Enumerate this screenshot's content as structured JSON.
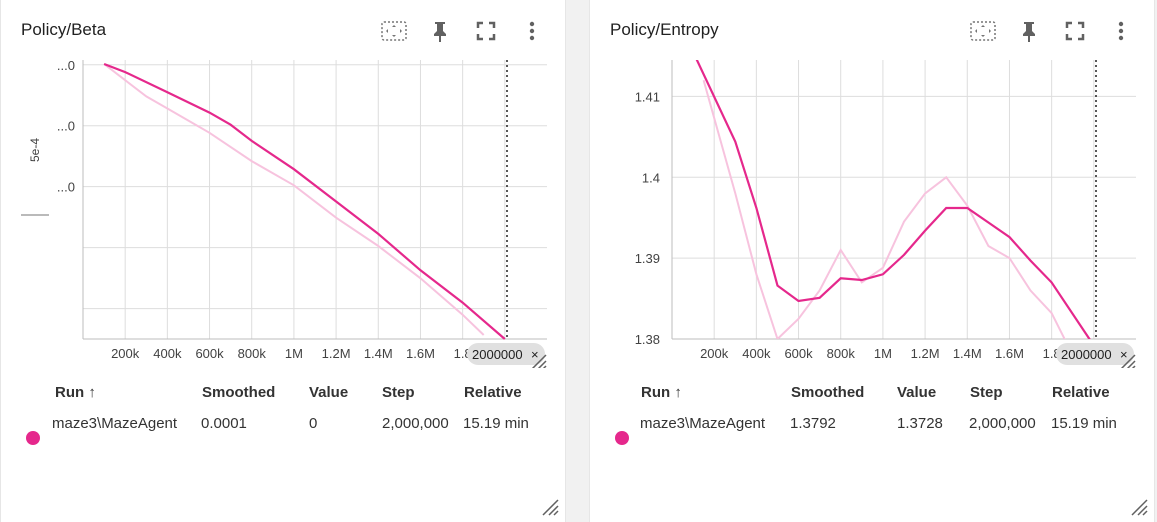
{
  "colors": {
    "smoothed": "#e5288c",
    "raw": "#f7c3de",
    "grid": "#dddddd",
    "axis": "#bdbdbd"
  },
  "toolbar_icons": [
    "fit-domain-icon",
    "pin-icon",
    "fullscreen-icon",
    "more-vert-icon"
  ],
  "table_headers": {
    "run": "Run ↑",
    "smoothed": "Smoothed",
    "value": "Value",
    "step": "Step",
    "relative": "Relative"
  },
  "cards": [
    {
      "title": "Policy/Beta",
      "y_scale_label": "5e-4",
      "x_ticks": [
        "200k",
        "400k",
        "600k",
        "800k",
        "1M",
        "1.2M",
        "1.4M",
        "1.6M",
        "1.8"
      ],
      "y_ticks": [
        "...0",
        "...0",
        "...0"
      ],
      "step_tag": "2000000",
      "step_tag_close": "×",
      "row": {
        "run": "maze3\\MazeAgent",
        "smoothed": "0.0001",
        "value": "0",
        "step": "2,000,000",
        "relative": "15.19 min"
      }
    },
    {
      "title": "Policy/Entropy",
      "x_ticks": [
        "200k",
        "400k",
        "600k",
        "800k",
        "1M",
        "1.2M",
        "1.4M",
        "1.6M",
        "1.8"
      ],
      "y_ticks": [
        "1.41",
        "1.4",
        "1.39",
        "1.38"
      ],
      "step_tag": "2000000",
      "step_tag_close": "×",
      "row": {
        "run": "maze3\\MazeAgent",
        "smoothed": "1.3792",
        "value": "1.3728",
        "step": "2,000,000",
        "relative": "15.19 min"
      }
    }
  ],
  "chart_data": [
    {
      "type": "line",
      "title": "Policy/Beta",
      "xlabel": "",
      "ylabel": "",
      "xlim": [
        0,
        2200000
      ],
      "series": [
        {
          "name": "smoothed",
          "x": [
            100000,
            200000,
            400000,
            600000,
            700000,
            800000,
            1000000,
            1200000,
            1400000,
            1600000,
            1800000,
            2000000
          ],
          "y": [
            0.99,
            0.97,
            0.92,
            0.87,
            0.84,
            0.8,
            0.73,
            0.65,
            0.57,
            0.48,
            0.4,
            0.31
          ]
        },
        {
          "name": "raw",
          "x": [
            100000,
            200000,
            300000,
            400000,
            600000,
            800000,
            1000000,
            1200000,
            1400000,
            1600000,
            1800000,
            1900000
          ],
          "y": [
            0.99,
            0.95,
            0.91,
            0.88,
            0.82,
            0.75,
            0.69,
            0.61,
            0.54,
            0.46,
            0.37,
            0.32
          ]
        }
      ],
      "ylim": [
        0.31,
        1.0
      ]
    },
    {
      "type": "line",
      "title": "Policy/Entropy",
      "xlabel": "",
      "ylabel": "",
      "xlim": [
        0,
        2200000
      ],
      "ylim": [
        1.38,
        1.4145
      ],
      "series": [
        {
          "name": "smoothed",
          "x": [
            100000,
            300000,
            400000,
            500000,
            600000,
            700000,
            800000,
            900000,
            1000000,
            1100000,
            1200000,
            1300000,
            1400000,
            1500000,
            1600000,
            1700000,
            1800000,
            2000000
          ],
          "y": [
            1.4155,
            1.4044,
            1.3962,
            1.3866,
            1.3847,
            1.3851,
            1.3875,
            1.3873,
            1.388,
            1.3904,
            1.3934,
            1.3962,
            1.3962,
            1.3944,
            1.3926,
            1.3897,
            1.387,
            1.3792
          ]
        },
        {
          "name": "raw",
          "x": [
            150000,
            300000,
            400000,
            500000,
            600000,
            700000,
            800000,
            900000,
            1000000,
            1100000,
            1200000,
            1300000,
            1400000,
            1500000,
            1600000,
            1700000,
            1800000,
            2000000
          ],
          "y": [
            1.412,
            1.398,
            1.388,
            1.38,
            1.3825,
            1.386,
            1.391,
            1.387,
            1.3888,
            1.3945,
            1.398,
            1.4,
            1.3965,
            1.3915,
            1.39,
            1.386,
            1.3832,
            1.3728
          ]
        }
      ]
    }
  ]
}
